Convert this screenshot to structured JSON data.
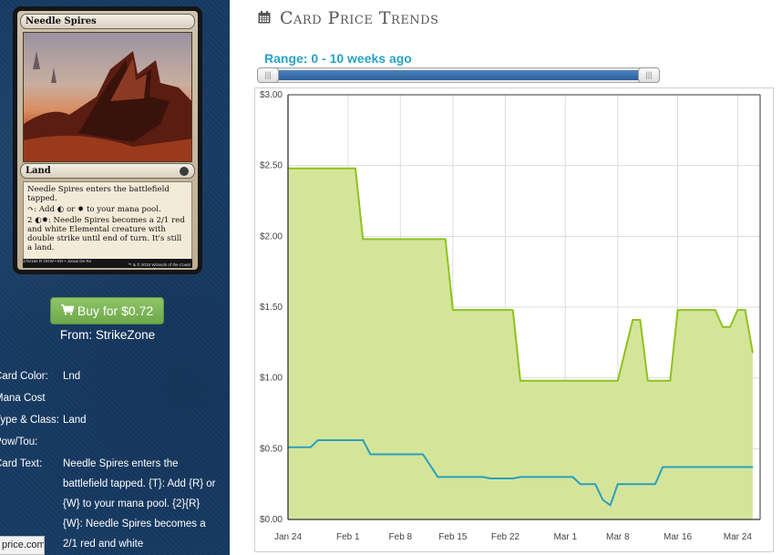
{
  "card": {
    "name": "Needle Spires",
    "type_line": "Land",
    "rules": [
      "Needle Spires enters the battlefield tapped.",
      "↷: Add ◐ or ✹ to your mana pool.",
      "2 ◐✹: Needle Spires becomes a 2/1 red and white Elemental creature with double strike until end of turn. It's still a land."
    ],
    "footer_left": "175/184 R  OGW • EN • Jonas De Ro",
    "footer_right": "™ & © 2016 Wizards of the Coast"
  },
  "buy": {
    "label": "Buy for $0.72",
    "from": "From: StrikeZone"
  },
  "details": [
    {
      "label": "Card Color:",
      "value": "Lnd"
    },
    {
      "label": "Mana Cost",
      "value": ""
    },
    {
      "label": "Type & Class:",
      "value": "Land"
    },
    {
      "label": "Pow/Tou:",
      "value": ""
    },
    {
      "label": "Card Text:",
      "value": "Needle Spires enters the battlefield tapped. {T}: Add {R} or {W} to your mana pool. {2}{R}{W}: Needle Spires becomes a 2/1 red and white"
    }
  ],
  "url_badge": "price.com",
  "page_title": "Card Price Trends",
  "range": {
    "label": "Range: 0 - 10 weeks ago",
    "start_weeks_ago": 0,
    "end_weeks_ago": 10,
    "handle_glyph": "|||"
  },
  "colors": {
    "sidebar_bg": "#163a63",
    "buy_button": "#7ab356",
    "range_label": "#29a3c6",
    "slider_fill": "#3b6fae",
    "series_high": "#8ec21f",
    "series_high_fill": "#d4e59a",
    "series_low": "#2a9fbd"
  },
  "icons": {
    "title": "calendar-icon",
    "buy": "shopping-cart-icon"
  },
  "chart_data": {
    "type": "area",
    "title": "",
    "xlabel": "",
    "ylabel": "",
    "x_range": [
      "2016-01-24",
      "2016-03-27"
    ],
    "ylim": [
      0,
      3
    ],
    "grid": true,
    "legend": "none",
    "x_ticks": [
      {
        "label": "Jan 24",
        "date": "2016-01-24"
      },
      {
        "label": "Feb 1",
        "date": "2016-02-01"
      },
      {
        "label": "Feb 8",
        "date": "2016-02-08"
      },
      {
        "label": "Feb 15",
        "date": "2016-02-15"
      },
      {
        "label": "Feb 22",
        "date": "2016-02-22"
      },
      {
        "label": "Mar 1",
        "date": "2016-03-01"
      },
      {
        "label": "Mar 8",
        "date": "2016-03-08"
      },
      {
        "label": "Mar 16",
        "date": "2016-03-16"
      },
      {
        "label": "Mar 24",
        "date": "2016-03-24"
      }
    ],
    "y_ticks": [
      {
        "label": "$0.00",
        "value": 0
      },
      {
        "label": "$0.50",
        "value": 0.5
      },
      {
        "label": "$1.00",
        "value": 1
      },
      {
        "label": "$1.50",
        "value": 1.5
      },
      {
        "label": "$2.00",
        "value": 2
      },
      {
        "label": "$2.50",
        "value": 2.5
      },
      {
        "label": "$3.00",
        "value": 3
      }
    ],
    "series": [
      {
        "filled": true,
        "points": [
          [
            "2016-01-24",
            2.48
          ],
          [
            "2016-02-02",
            2.48
          ],
          [
            "2016-02-03",
            1.98
          ],
          [
            "2016-02-14",
            1.98
          ],
          [
            "2016-02-15",
            1.48
          ],
          [
            "2016-02-23",
            1.48
          ],
          [
            "2016-02-24",
            0.98
          ],
          [
            "2016-03-08",
            0.98
          ],
          [
            "2016-03-10",
            1.41
          ],
          [
            "2016-03-11",
            1.41
          ],
          [
            "2016-03-12",
            0.98
          ],
          [
            "2016-03-15",
            0.98
          ],
          [
            "2016-03-16",
            1.48
          ],
          [
            "2016-03-21",
            1.48
          ],
          [
            "2016-03-22",
            1.36
          ],
          [
            "2016-03-23",
            1.36
          ],
          [
            "2016-03-24",
            1.48
          ],
          [
            "2016-03-25",
            1.48
          ],
          [
            "2016-03-26",
            1.18
          ]
        ]
      },
      {
        "filled": false,
        "points": [
          [
            "2016-01-24",
            0.51
          ],
          [
            "2016-01-27",
            0.51
          ],
          [
            "2016-01-28",
            0.56
          ],
          [
            "2016-02-03",
            0.56
          ],
          [
            "2016-02-04",
            0.46
          ],
          [
            "2016-02-11",
            0.46
          ],
          [
            "2016-02-13",
            0.3
          ],
          [
            "2016-02-19",
            0.3
          ],
          [
            "2016-02-20",
            0.29
          ],
          [
            "2016-02-23",
            0.29
          ],
          [
            "2016-02-24",
            0.3
          ],
          [
            "2016-02-28",
            0.3
          ],
          [
            "2016-03-02",
            0.3
          ],
          [
            "2016-03-03",
            0.25
          ],
          [
            "2016-03-05",
            0.25
          ],
          [
            "2016-03-06",
            0.14
          ],
          [
            "2016-03-07",
            0.1
          ],
          [
            "2016-03-08",
            0.25
          ],
          [
            "2016-03-13",
            0.25
          ],
          [
            "2016-03-14",
            0.37
          ],
          [
            "2016-03-26",
            0.37
          ]
        ]
      }
    ]
  }
}
